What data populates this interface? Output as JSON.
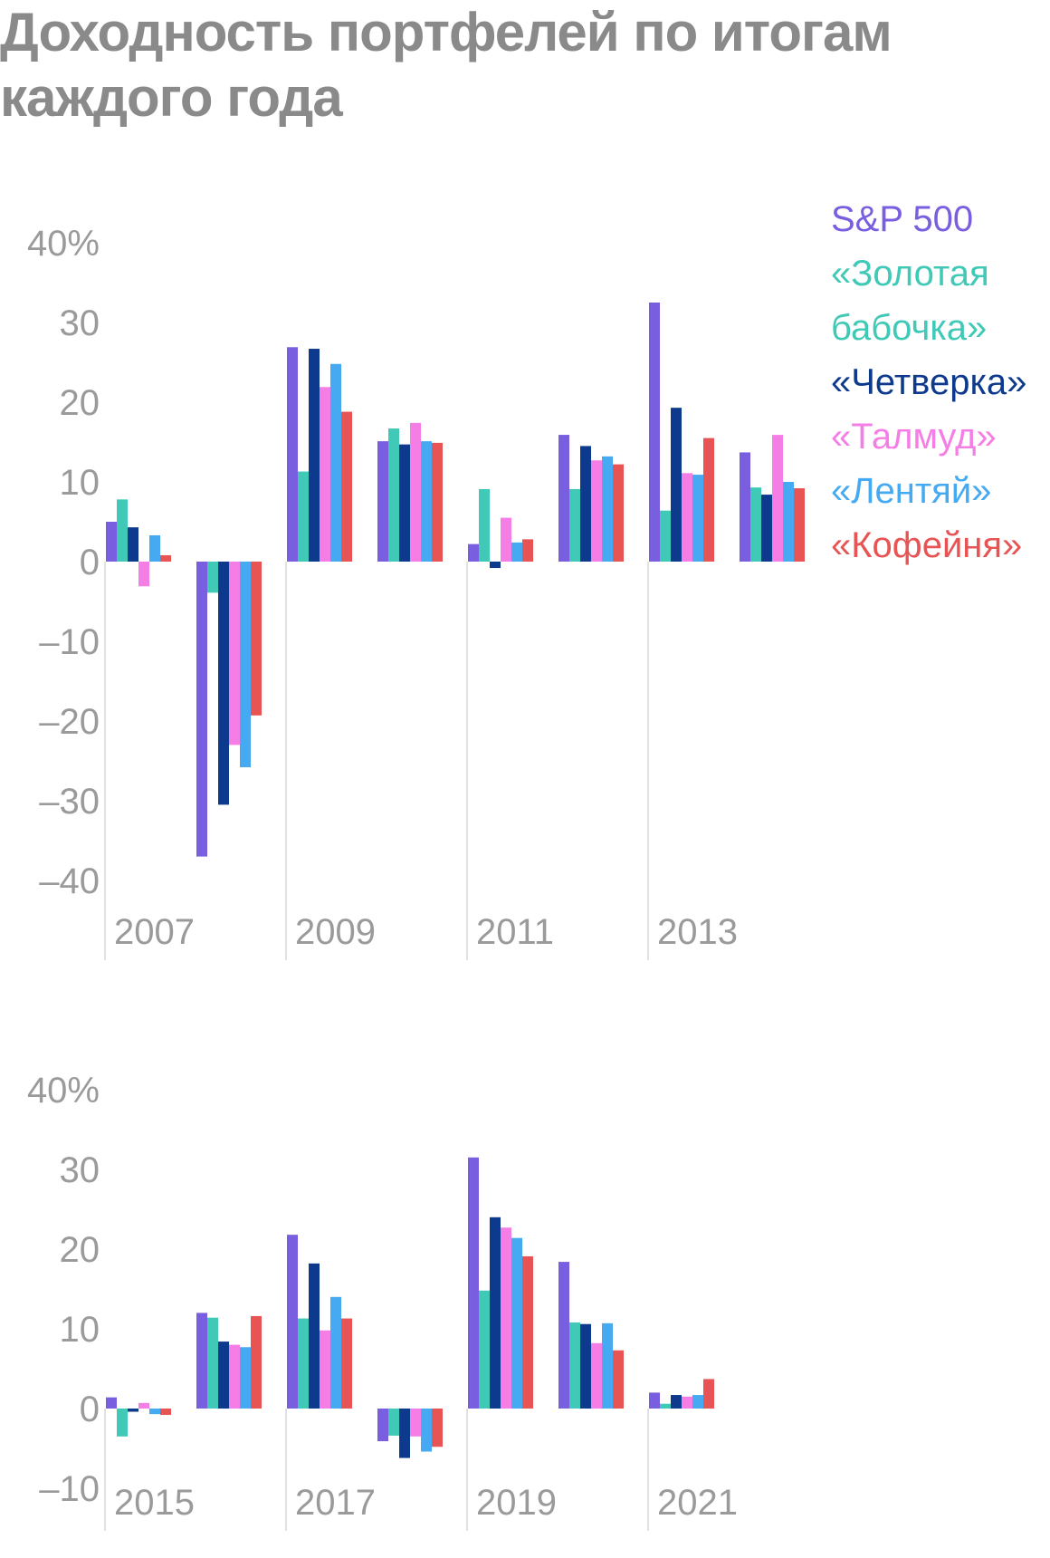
{
  "title": "Доходность портфелей по итогам каждого года",
  "legend": [
    {
      "label": "S&P 500",
      "color": "#7a5ee0"
    },
    {
      "label": "«Золотая бабочка»",
      "color": "#40c9b6"
    },
    {
      "label": "«Четверка»",
      "color": "#0d3a8c"
    },
    {
      "label": "«Талмуд»",
      "color": "#f57ee6"
    },
    {
      "label": "«Лентяй»",
      "color": "#45aaf2"
    },
    {
      "label": "«Кофейня»",
      "color": "#e85353"
    }
  ],
  "chart_data": [
    {
      "type": "bar",
      "categories": [
        "2007",
        "2008",
        "2009",
        "2010",
        "2011",
        "2012",
        "2013",
        "2014"
      ],
      "x_tick_labels": [
        "2007",
        "2009",
        "2011",
        "2013"
      ],
      "y_tick_labels": [
        "40%",
        "30",
        "20",
        "10",
        "0",
        "–10",
        "–20",
        "–30",
        "–40"
      ],
      "ylim": [
        -40,
        40
      ],
      "series": [
        {
          "name": "S&P 500",
          "values": [
            5.0,
            -37.0,
            26.9,
            15.1,
            2.2,
            15.9,
            32.5,
            13.7
          ]
        },
        {
          "name": "«Золотая бабочка»",
          "values": [
            7.8,
            -3.9,
            11.3,
            16.7,
            9.1,
            9.1,
            6.4,
            9.3
          ]
        },
        {
          "name": "«Четверка»",
          "values": [
            4.3,
            -30.5,
            26.7,
            14.7,
            -0.8,
            14.5,
            19.3,
            8.4
          ]
        },
        {
          "name": "«Талмуд»",
          "values": [
            -3.1,
            -23.0,
            21.9,
            17.4,
            5.5,
            12.7,
            11.1,
            15.9
          ]
        },
        {
          "name": "«Лентяй»",
          "values": [
            3.3,
            -25.8,
            24.8,
            15.1,
            2.4,
            13.2,
            10.9,
            10.0
          ]
        },
        {
          "name": "«Кофейня»",
          "values": [
            0.8,
            -19.3,
            18.8,
            14.9,
            2.8,
            12.2,
            15.5,
            9.2
          ]
        }
      ]
    },
    {
      "type": "bar",
      "categories": [
        "2015",
        "2016",
        "2017",
        "2018",
        "2019",
        "2020",
        "2021"
      ],
      "x_tick_labels": [
        "2015",
        "2017",
        "2019",
        "2021"
      ],
      "y_tick_labels": [
        "40%",
        "30",
        "20",
        "10",
        "0",
        "–10"
      ],
      "ylim": [
        -10,
        40
      ],
      "series": [
        {
          "name": "S&P 500",
          "values": [
            1.4,
            12.0,
            21.8,
            -4.1,
            31.5,
            18.4,
            2.0
          ]
        },
        {
          "name": "«Золотая бабочка»",
          "values": [
            -3.5,
            11.4,
            11.3,
            -3.4,
            14.8,
            10.8,
            0.6
          ]
        },
        {
          "name": "«Четверка»",
          "values": [
            -0.4,
            8.4,
            18.2,
            -6.2,
            24.0,
            10.6,
            1.7
          ]
        },
        {
          "name": "«Талмуд»",
          "values": [
            0.7,
            8.0,
            9.8,
            -3.5,
            22.7,
            8.2,
            1.5
          ]
        },
        {
          "name": "«Лентяй»",
          "values": [
            -0.7,
            7.7,
            14.0,
            -5.4,
            21.4,
            10.7,
            1.7
          ]
        },
        {
          "name": "«Кофейня»",
          "values": [
            -0.8,
            11.6,
            11.3,
            -4.8,
            19.1,
            7.3,
            3.7
          ]
        }
      ]
    }
  ]
}
